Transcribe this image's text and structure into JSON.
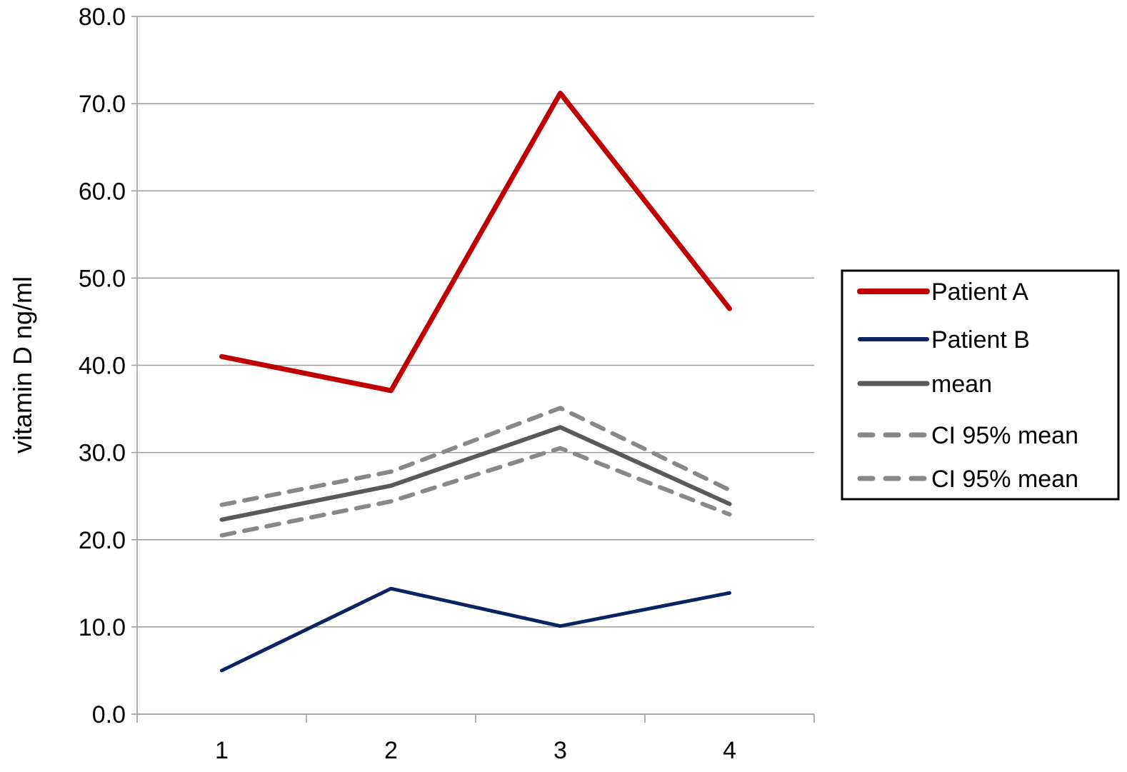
{
  "chart_data": {
    "type": "line",
    "title": "",
    "xlabel": "",
    "ylabel": "vitamin D ng/ml",
    "categories": [
      "1",
      "2",
      "3",
      "4"
    ],
    "ylim": [
      0,
      80
    ],
    "yticks": [
      "0.0",
      "10.0",
      "20.0",
      "30.0",
      "40.0",
      "50.0",
      "60.0",
      "70.0",
      "80.0"
    ],
    "grid": true,
    "legend_position": "right",
    "series": [
      {
        "name": "Patient A",
        "values": [
          41.0,
          37.1,
          71.2,
          46.5
        ],
        "color": "#c00000",
        "dash": false,
        "width": 7
      },
      {
        "name": "Patient B",
        "values": [
          5.0,
          14.4,
          10.1,
          13.9
        ],
        "color": "#0b2461",
        "dash": false,
        "width": 5
      },
      {
        "name": "mean",
        "values": [
          22.3,
          26.2,
          32.9,
          24.1
        ],
        "color": "#595959",
        "dash": false,
        "width": 6
      },
      {
        "name": "CI 95% mean",
        "values": [
          24.0,
          27.8,
          35.1,
          25.7
        ],
        "color": "#888888",
        "dash": true,
        "width": 6
      },
      {
        "name": "CI 95% mean",
        "values": [
          20.5,
          24.4,
          30.5,
          22.9
        ],
        "color": "#888888",
        "dash": true,
        "width": 6
      }
    ]
  }
}
